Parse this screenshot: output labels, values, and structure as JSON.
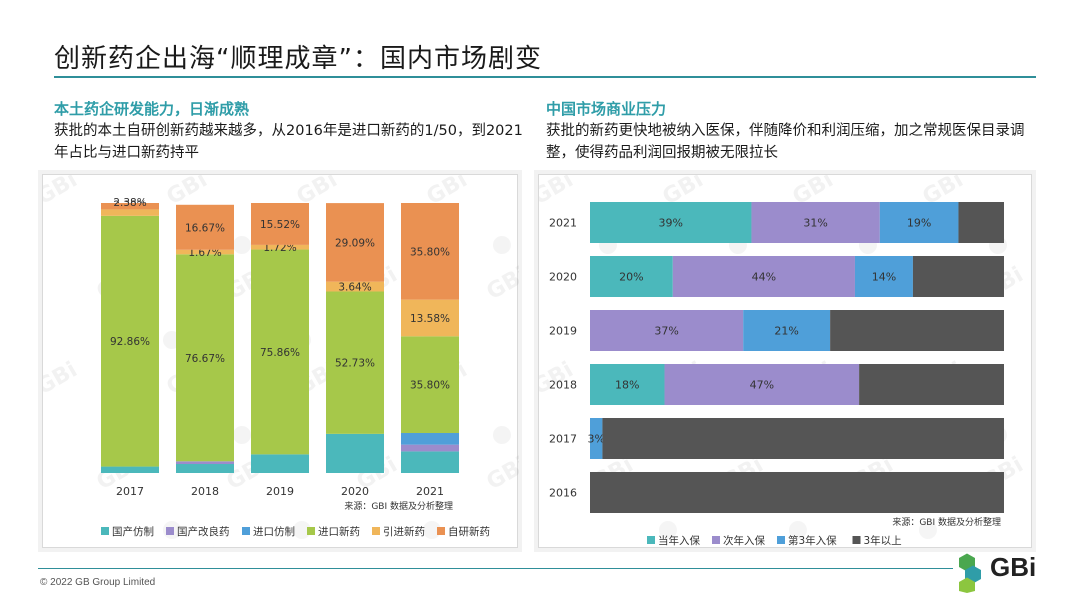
{
  "page": {
    "title": "创新药企出海“顺理成章”：国内市场剧变",
    "copyright": "© 2022 GB Group Limited",
    "logo_text": "GBi",
    "watermark": "GBi"
  },
  "left": {
    "heading": "本土药企研发能力，日渐成熟",
    "description": "获批的本土自研创新药越来越多，从2016年是进口新药的1/50，到2021年占比与进口新药持平",
    "source": "来源：GBI 数据及分析整理"
  },
  "right": {
    "heading": "中国市场商业压力",
    "description": "获批的新药更快地被纳入医保，伴随降价和利润压缩，加之常规医保目录调整，使得药品利润回报期被无限拉长",
    "source": "来源：GBI 数据及分析整理"
  },
  "colors": {
    "accent": "#2f9da8",
    "teal": "#4bb8bb",
    "purple": "#9b8ccc",
    "blue": "#4f9fd9",
    "green": "#a6c84a",
    "yellow": "#f0b65a",
    "orange": "#ea9152",
    "dark": "#555555"
  },
  "chart_data": [
    {
      "type": "bar",
      "stacked": true,
      "orientation": "vertical",
      "categories": [
        "2017",
        "2018",
        "2019",
        "2020",
        "2021"
      ],
      "series": [
        {
          "name": "国产仿制",
          "color": "#4bb8bb",
          "values": [
            2.38,
            3.33,
            6.9,
            14.5,
            8.0
          ]
        },
        {
          "name": "国产改良药",
          "color": "#9b8ccc",
          "values": [
            0,
            1.0,
            0,
            0,
            2.5
          ]
        },
        {
          "name": "进口仿制",
          "color": "#4f9fd9",
          "values": [
            0,
            0,
            0,
            0,
            4.32
          ]
        },
        {
          "name": "进口新药",
          "color": "#a6c84a",
          "values": [
            92.86,
            76.67,
            75.86,
            52.73,
            35.8
          ]
        },
        {
          "name": "引进新药",
          "color": "#f0b65a",
          "values": [
            2.38,
            1.67,
            1.72,
            3.64,
            13.58
          ]
        },
        {
          "name": "自研新药",
          "color": "#ea9152",
          "values": [
            2.38,
            16.67,
            15.52,
            29.09,
            35.8
          ]
        }
      ],
      "labels": [
        [
          null,
          null,
          null,
          "92.86%",
          "2.38%",
          "2.38%"
        ],
        [
          null,
          null,
          null,
          "76.67%",
          "1.67%",
          "16.67%"
        ],
        [
          null,
          null,
          null,
          "75.86%",
          "1.72%",
          "15.52%"
        ],
        [
          null,
          null,
          null,
          "52.73%",
          "3.64%",
          "29.09%"
        ],
        [
          null,
          null,
          null,
          "35.80%",
          "13.58%",
          "35.80%"
        ]
      ],
      "ylim": [
        0,
        100
      ],
      "legend": "bottom"
    },
    {
      "type": "bar",
      "stacked": true,
      "orientation": "horizontal",
      "categories": [
        "2021",
        "2020",
        "2019",
        "2018",
        "2017",
        "2016"
      ],
      "series": [
        {
          "name": "当年入保",
          "color": "#4bb8bb",
          "values": [
            39,
            20,
            0,
            18,
            0,
            0
          ]
        },
        {
          "name": "次年入保",
          "color": "#9b8ccc",
          "values": [
            31,
            44,
            37,
            47,
            0,
            0
          ]
        },
        {
          "name": "第3年入保",
          "color": "#4f9fd9",
          "values": [
            19,
            14,
            21,
            0,
            3,
            0
          ]
        },
        {
          "name": "3年以上",
          "color": "#555555",
          "values": [
            11,
            22,
            42,
            35,
            97,
            100
          ]
        }
      ],
      "labels": [
        [
          "39%",
          "31%",
          "19%",
          null
        ],
        [
          "20%",
          "44%",
          "14%",
          null
        ],
        [
          null,
          "37%",
          "21%",
          null
        ],
        [
          "18%",
          "47%",
          null,
          null
        ],
        [
          null,
          null,
          "3%",
          null
        ],
        [
          null,
          null,
          null,
          null
        ]
      ],
      "xlim": [
        0,
        100
      ],
      "legend": "bottom"
    }
  ]
}
